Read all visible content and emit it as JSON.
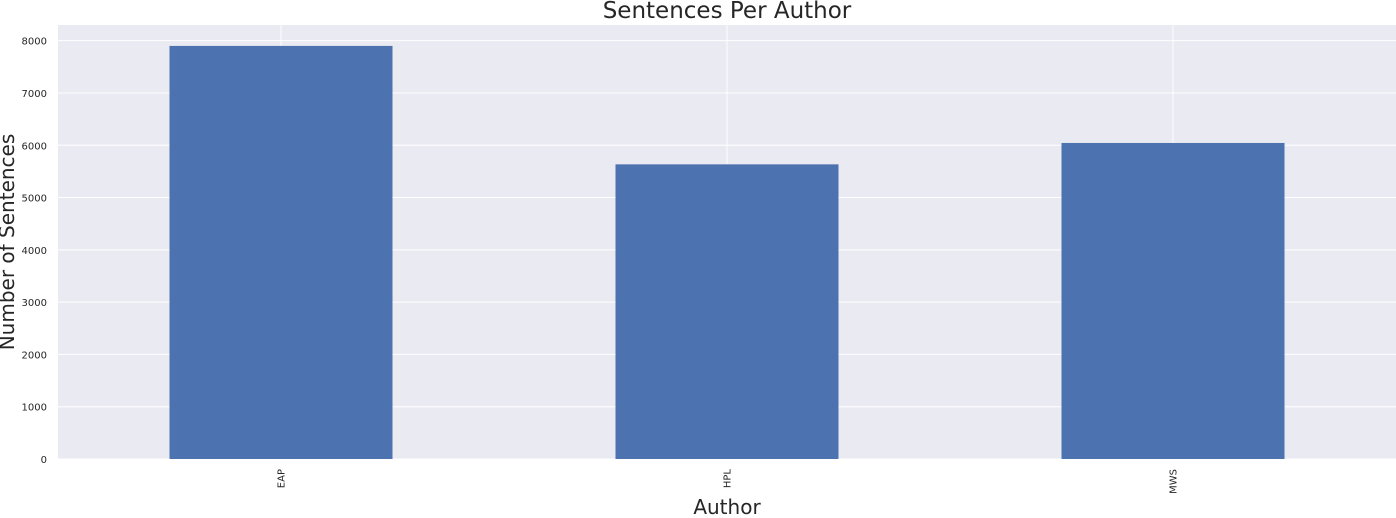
{
  "chart_data": {
    "type": "bar",
    "title": "Sentences Per Author",
    "xlabel": "Author",
    "ylabel": "Number of Sentences",
    "categories": [
      "EAP",
      "HPL",
      "MWS"
    ],
    "values": [
      7900,
      5635,
      6044
    ],
    "ylim": [
      0,
      8300
    ],
    "yticks": [
      0,
      1000,
      2000,
      3000,
      4000,
      5000,
      6000,
      7000,
      8000
    ],
    "x_tick_rotation": 90,
    "grid": true,
    "legend": "none",
    "colors": {
      "bar": "#4c72b0",
      "plot_background": "#eaeaf2",
      "grid": "#ffffff",
      "text": "#262626"
    }
  }
}
